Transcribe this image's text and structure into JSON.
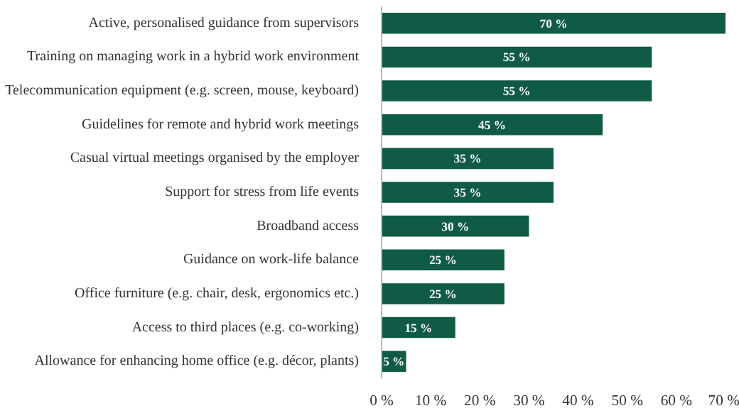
{
  "chart_data": {
    "type": "bar",
    "orientation": "horizontal",
    "categories": [
      "Active, personalised guidance from supervisors",
      "Training on managing work in a hybrid work environment",
      "Telecommunication equipment (e.g. screen, mouse, keyboard)",
      "Guidelines for remote and hybrid work meetings",
      "Casual virtual meetings organised by the employer",
      "Support for stress from life events",
      "Broadband access",
      "Guidance on work-life balance",
      "Office furniture (e.g. chair, desk, ergonomics etc.)",
      "Access to third places (e.g. co-working)",
      "Allowance for enhancing home office (e.g. décor, plants)"
    ],
    "values": [
      70,
      55,
      55,
      45,
      35,
      35,
      30,
      25,
      25,
      15,
      5
    ],
    "value_labels": [
      "70 %",
      "55 %",
      "55 %",
      "45 %",
      "35 %",
      "35 %",
      "30 %",
      "25 %",
      "25 %",
      "15 %",
      "5 %"
    ],
    "color": "#0f5b45",
    "xlim": [
      0,
      70
    ],
    "xticks": [
      {
        "value": 0,
        "label": "0 %"
      },
      {
        "value": 10,
        "label": "10 %"
      },
      {
        "value": 20,
        "label": "20 %"
      },
      {
        "value": 30,
        "label": "30 %"
      },
      {
        "value": 40,
        "label": "40 %"
      },
      {
        "value": 50,
        "label": "50 %"
      },
      {
        "value": 60,
        "label": "60 %"
      },
      {
        "value": 70,
        "label": "70 %"
      }
    ],
    "grid": false
  }
}
